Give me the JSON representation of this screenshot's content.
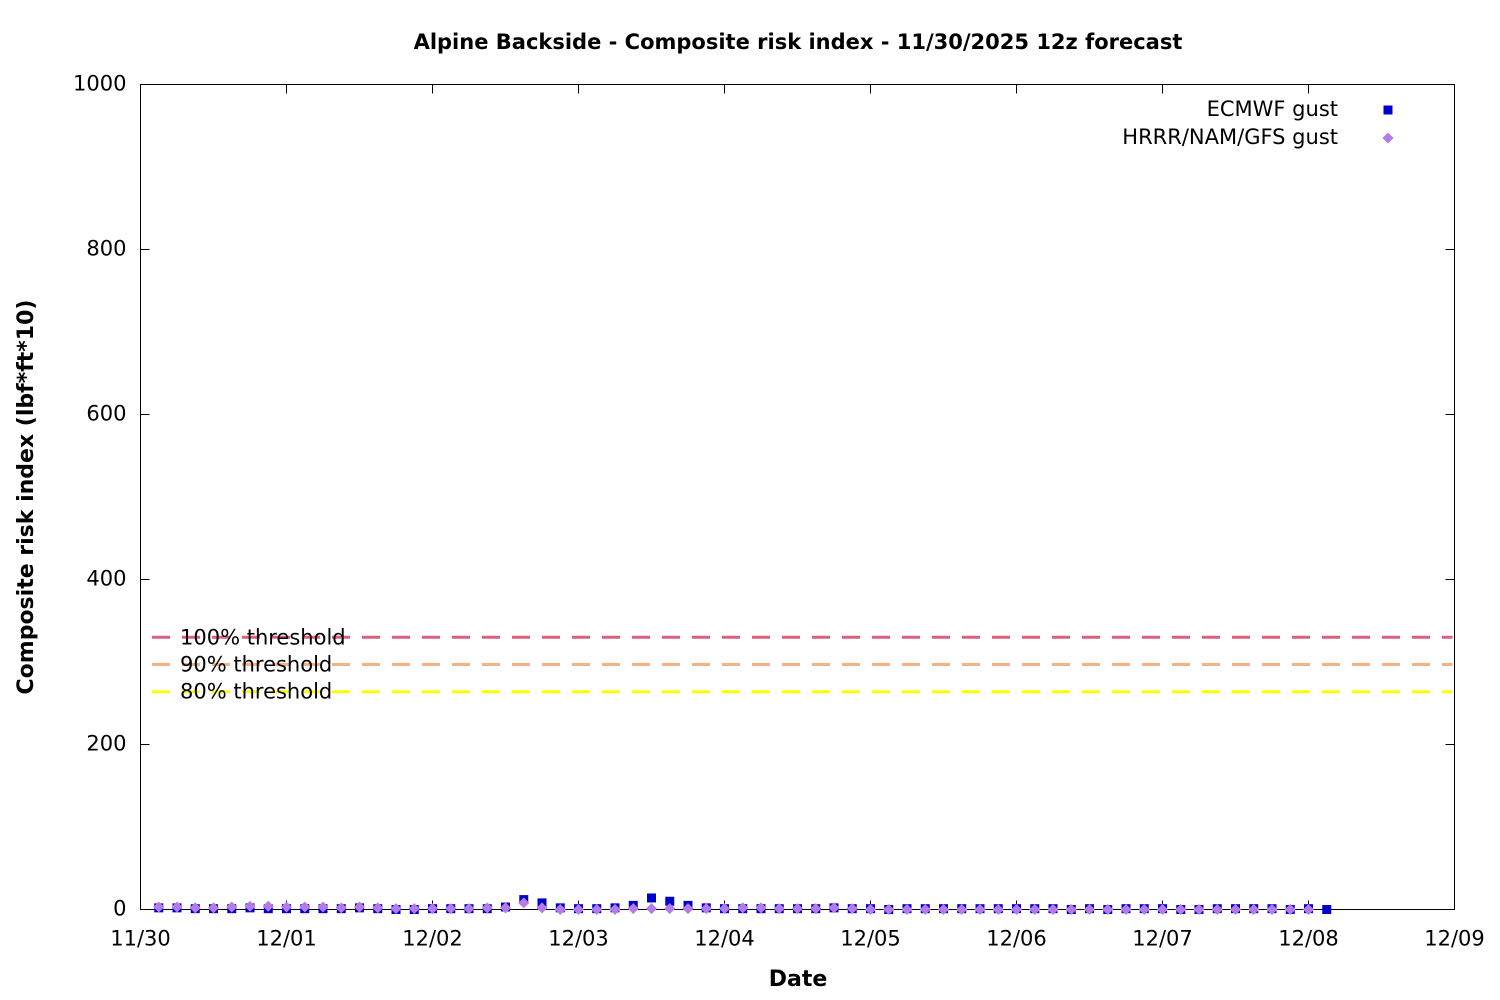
{
  "chart_data": {
    "type": "scatter",
    "title": "Alpine Backside - Composite risk index - 11/30/2025 12z forecast",
    "x_label": "Date",
    "y_label": "Composite risk index (lbf*ft*10)",
    "xlim": [
      0,
      9
    ],
    "xticks": [
      {
        "value": 0,
        "label": "11/30"
      },
      {
        "value": 1,
        "label": "12/01"
      },
      {
        "value": 2,
        "label": "12/02"
      },
      {
        "value": 3,
        "label": "12/03"
      },
      {
        "value": 4,
        "label": "12/04"
      },
      {
        "value": 5,
        "label": "12/05"
      },
      {
        "value": 6,
        "label": "12/06"
      },
      {
        "value": 7,
        "label": "12/07"
      },
      {
        "value": 8,
        "label": "12/08"
      },
      {
        "value": 9,
        "label": "12/09"
      }
    ],
    "ylim": [
      0,
      1000
    ],
    "yticks": [
      0,
      200,
      400,
      600,
      800,
      1000
    ],
    "legend": "top-right",
    "thresholds": [
      {
        "label": "100% threshold",
        "value": 330,
        "color": "#d9607f"
      },
      {
        "label": "90% threshold",
        "value": 297,
        "color": "#f5b183"
      },
      {
        "label": "80% threshold",
        "value": 264,
        "color": "#ffff00"
      }
    ],
    "series": [
      {
        "name": "ECMWF gust",
        "color": "#0000cc",
        "marker": "square",
        "x": [
          0.125,
          0.25,
          0.375,
          0.5,
          0.625,
          0.75,
          0.875,
          1,
          1.125,
          1.25,
          1.375,
          1.5,
          1.625,
          1.75,
          1.875,
          2,
          2.125,
          2.25,
          2.375,
          2.5,
          2.625,
          2.75,
          2.875,
          3,
          3.125,
          3.25,
          3.375,
          3.5,
          3.625,
          3.75,
          3.875,
          4,
          4.125,
          4.25,
          4.375,
          4.5,
          4.625,
          4.75,
          4.875,
          5,
          5.125,
          5.25,
          5.375,
          5.5,
          5.625,
          5.75,
          5.875,
          6,
          6.125,
          6.25,
          6.375,
          6.5,
          6.625,
          6.75,
          6.875,
          7,
          7.125,
          7.25,
          7.375,
          7.5,
          7.625,
          7.75,
          7.875,
          8,
          8.125
        ],
        "values": [
          2,
          2,
          1,
          1,
          1,
          2,
          1,
          1,
          1,
          1,
          1,
          2,
          1,
          0,
          0,
          1,
          1,
          1,
          1,
          3,
          12,
          8,
          2,
          1,
          1,
          2,
          5,
          14,
          10,
          5,
          2,
          1,
          1,
          1,
          1,
          1,
          1,
          2,
          1,
          1,
          0,
          1,
          1,
          1,
          1,
          1,
          1,
          1,
          1,
          1,
          0,
          1,
          0,
          1,
          1,
          1,
          0,
          0,
          1,
          1,
          1,
          1,
          0,
          1,
          0
        ]
      },
      {
        "name": "HRRR/NAM/GFS gust",
        "color": "#b57be8",
        "marker": "diamond",
        "x": [
          0.125,
          0.25,
          0.375,
          0.5,
          0.625,
          0.75,
          0.875,
          1,
          1.125,
          1.25,
          1.375,
          1.5,
          1.625,
          1.75,
          1.875,
          2,
          2.125,
          2.25,
          2.375,
          2.5,
          2.625,
          2.75,
          2.875,
          3,
          3.125,
          3.25,
          3.375,
          3.5,
          3.625,
          3.75,
          3.875,
          4,
          4.125,
          4.25,
          4.375,
          4.5,
          4.625,
          4.75,
          4.875,
          5,
          5.125,
          5.25,
          5.375,
          5.5,
          5.625,
          5.75,
          5.875,
          6,
          6.125,
          6.25,
          6.375,
          6.5,
          6.625,
          6.75,
          6.875,
          7,
          7.125,
          7.25,
          7.375,
          7.5,
          7.625,
          7.75,
          7.875,
          8
        ],
        "values": [
          3,
          3,
          2,
          2,
          3,
          4,
          4,
          3,
          3,
          3,
          2,
          3,
          2,
          1,
          1,
          1,
          1,
          1,
          2,
          2,
          8,
          2,
          0,
          0,
          0,
          0,
          1,
          1,
          1,
          1,
          1,
          1,
          2,
          2,
          1,
          1,
          1,
          2,
          1,
          0,
          0,
          0,
          0,
          0,
          0,
          0,
          0,
          0,
          0,
          0,
          0,
          0,
          0,
          0,
          0,
          0,
          0,
          0,
          0,
          0,
          0,
          0,
          0,
          0
        ]
      }
    ]
  }
}
